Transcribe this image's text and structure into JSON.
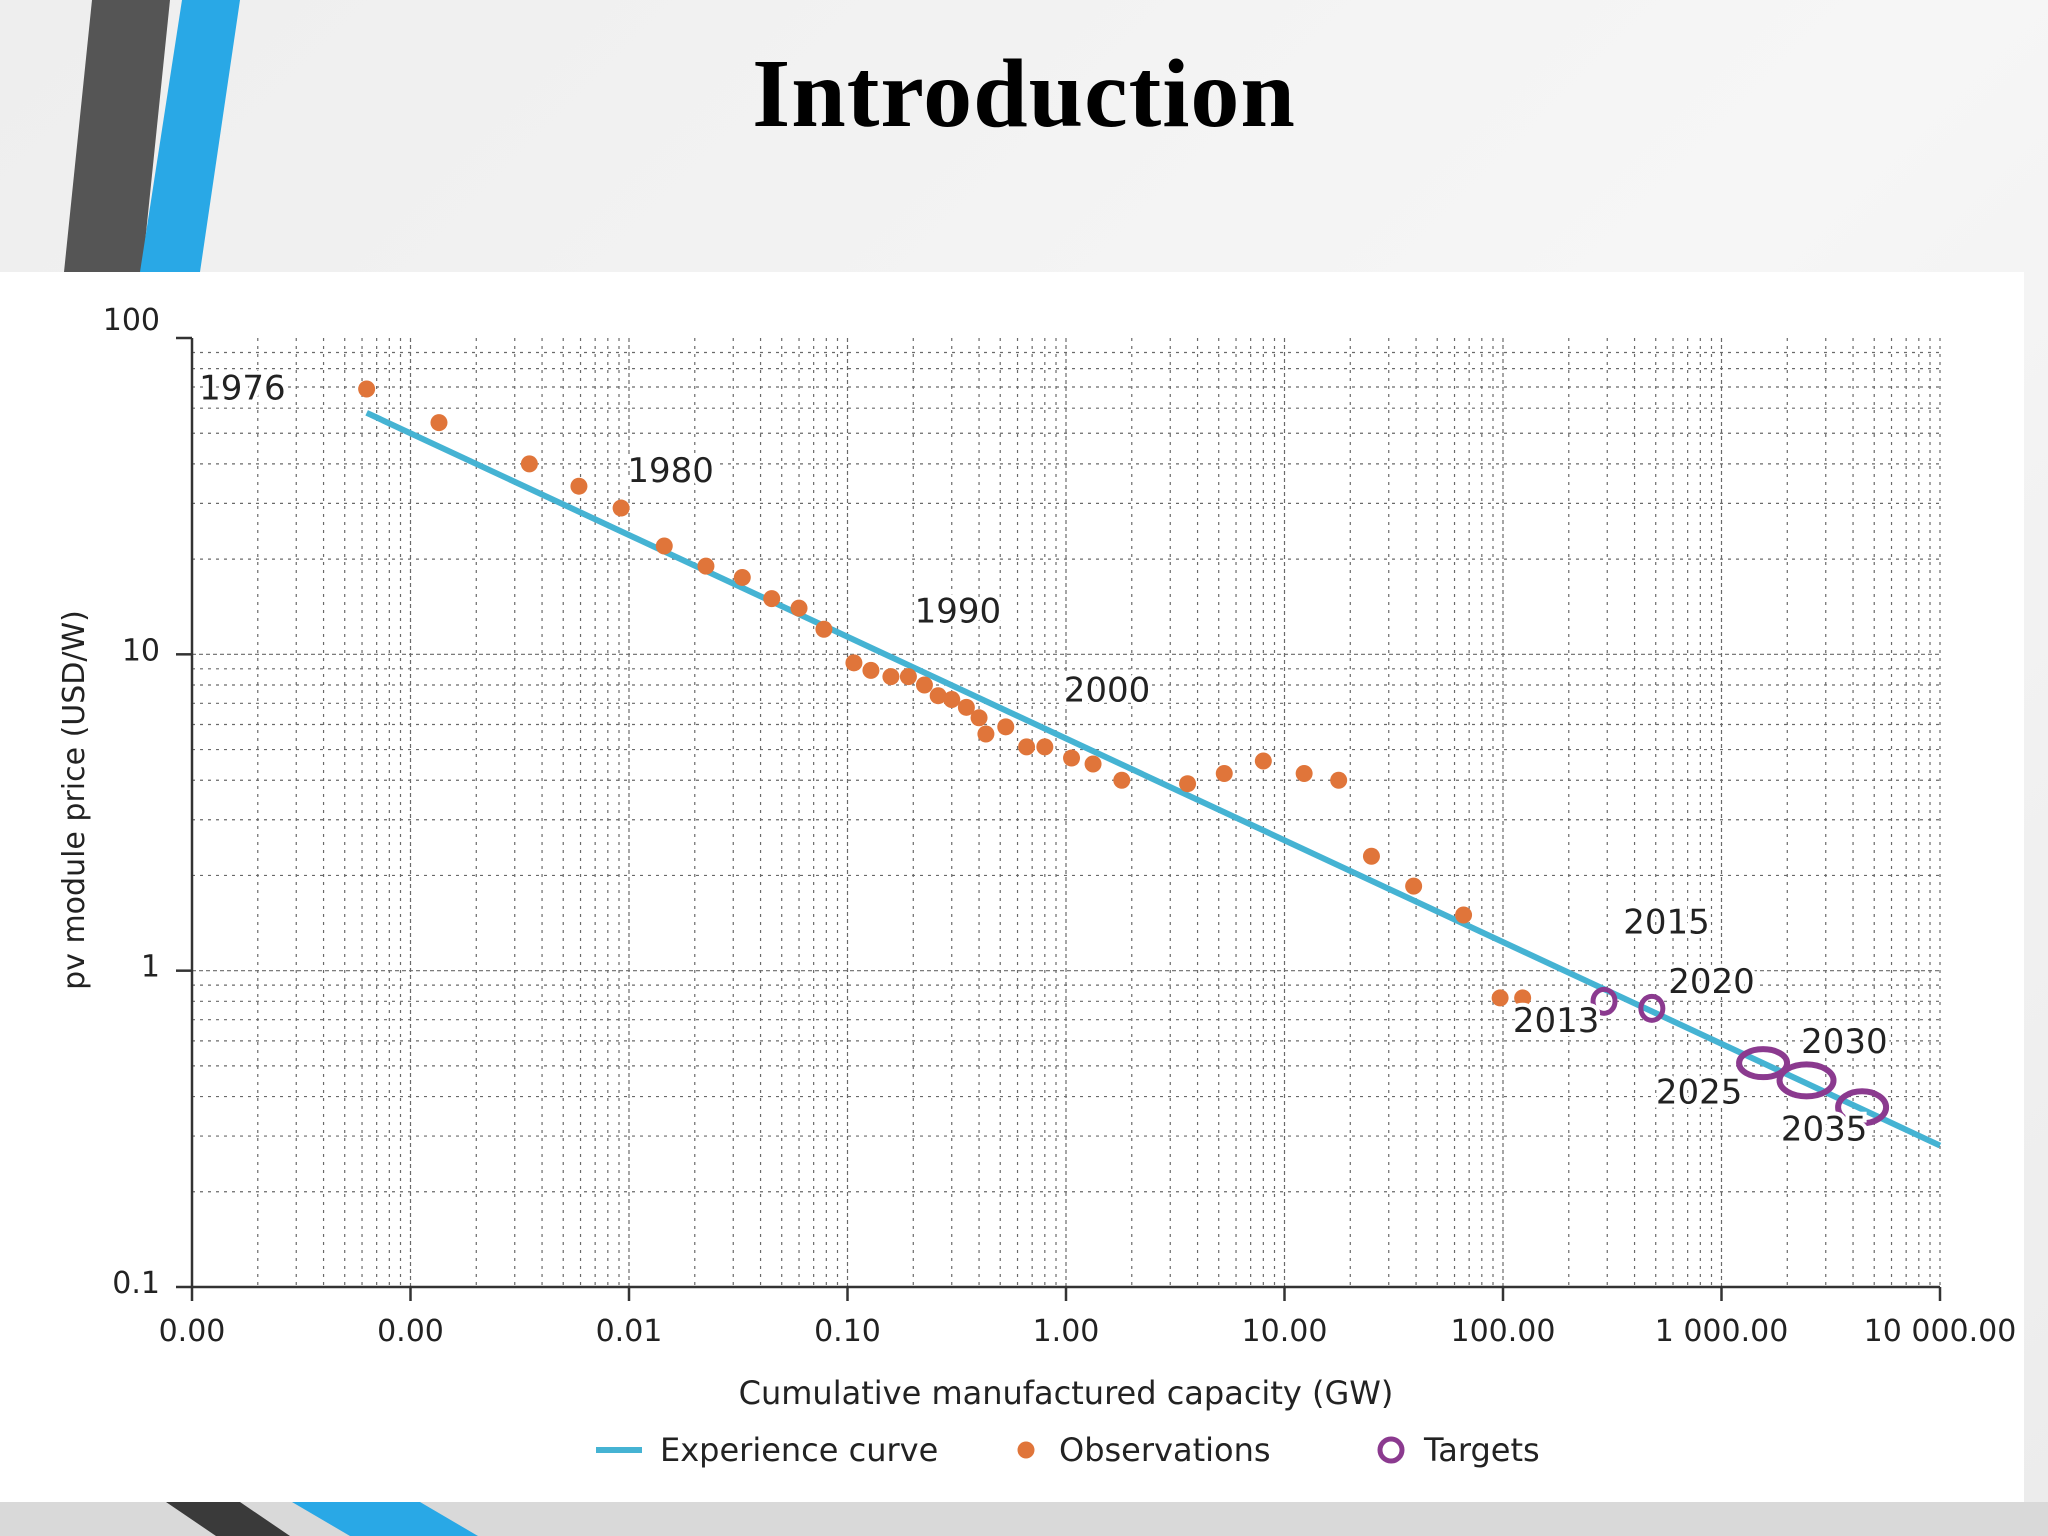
{
  "slide": {
    "title": "Introduction"
  },
  "colors": {
    "accent_dark": "#555555",
    "accent_blue": "#29a8e6",
    "experience_curve": "#45b3d3",
    "observations": "#e0753a",
    "targets": "#8b3a8f"
  },
  "chart_data": {
    "type": "scatter",
    "xlabel": "Cumulative manufactured capacity (GW)",
    "ylabel": "pv module price (USD/W)",
    "x_scale": "log",
    "y_scale": "log",
    "xlim": [
      0.0001,
      10000
    ],
    "ylim": [
      0.1,
      100
    ],
    "grid": true,
    "x_ticks": [
      {
        "value": 0.0001,
        "label": "0.00"
      },
      {
        "value": 0.001,
        "label": "0.00"
      },
      {
        "value": 0.01,
        "label": "0.01"
      },
      {
        "value": 0.1,
        "label": "0.10"
      },
      {
        "value": 1,
        "label": "1.00"
      },
      {
        "value": 10,
        "label": "10.00"
      },
      {
        "value": 100,
        "label": "100.00"
      },
      {
        "value": 1000,
        "label": "1 000.00"
      },
      {
        "value": 10000,
        "label": "10 000.00"
      }
    ],
    "y_ticks": [
      {
        "value": 0.1,
        "label": "0.1"
      },
      {
        "value": 1,
        "label": "1"
      },
      {
        "value": 10,
        "label": "10"
      },
      {
        "value": 100,
        "label": "100"
      }
    ],
    "legend": {
      "position": "bottom",
      "items": [
        {
          "label": "Experience curve",
          "kind": "line"
        },
        {
          "label": "Observations",
          "kind": "dot"
        },
        {
          "label": "Targets",
          "kind": "ring"
        }
      ]
    },
    "series": [
      {
        "name": "Experience curve",
        "kind": "line",
        "points": [
          {
            "x": 0.00063,
            "y": 58
          },
          {
            "x": 10000,
            "y": 0.28
          }
        ]
      },
      {
        "name": "Observations",
        "kind": "scatter",
        "points": [
          {
            "x": 0.00063,
            "y": 69
          },
          {
            "x": 0.00135,
            "y": 54
          },
          {
            "x": 0.0035,
            "y": 40
          },
          {
            "x": 0.0059,
            "y": 34
          },
          {
            "x": 0.0092,
            "y": 29
          },
          {
            "x": 0.0145,
            "y": 22
          },
          {
            "x": 0.0225,
            "y": 19
          },
          {
            "x": 0.033,
            "y": 17.5
          },
          {
            "x": 0.045,
            "y": 15
          },
          {
            "x": 0.06,
            "y": 14
          },
          {
            "x": 0.078,
            "y": 12
          },
          {
            "x": 0.107,
            "y": 9.4
          },
          {
            "x": 0.128,
            "y": 8.9
          },
          {
            "x": 0.158,
            "y": 8.5
          },
          {
            "x": 0.19,
            "y": 8.5
          },
          {
            "x": 0.225,
            "y": 8.0
          },
          {
            "x": 0.26,
            "y": 7.4
          },
          {
            "x": 0.3,
            "y": 7.2
          },
          {
            "x": 0.35,
            "y": 6.8
          },
          {
            "x": 0.4,
            "y": 6.3
          },
          {
            "x": 0.43,
            "y": 5.6
          },
          {
            "x": 0.53,
            "y": 5.9
          },
          {
            "x": 0.66,
            "y": 5.1
          },
          {
            "x": 0.8,
            "y": 5.1
          },
          {
            "x": 1.06,
            "y": 4.7
          },
          {
            "x": 1.33,
            "y": 4.5
          },
          {
            "x": 1.8,
            "y": 4.0
          },
          {
            "x": 3.6,
            "y": 3.9
          },
          {
            "x": 5.3,
            "y": 4.2
          },
          {
            "x": 8.0,
            "y": 4.6
          },
          {
            "x": 12.3,
            "y": 4.2
          },
          {
            "x": 17.7,
            "y": 4.0
          },
          {
            "x": 25,
            "y": 2.3
          },
          {
            "x": 39,
            "y": 1.85
          },
          {
            "x": 66,
            "y": 1.5
          },
          {
            "x": 97,
            "y": 0.82
          },
          {
            "x": 123,
            "y": 0.82
          }
        ]
      },
      {
        "name": "Targets",
        "kind": "ring",
        "points": [
          {
            "x": 290,
            "y": 0.8
          },
          {
            "x": 480,
            "y": 0.76
          },
          {
            "x": 1550,
            "y": 0.51
          },
          {
            "x": 2450,
            "y": 0.45
          },
          {
            "x": 4400,
            "y": 0.37
          }
        ]
      }
    ],
    "annotations": [
      {
        "text": "1976",
        "x": 0.00017,
        "y": 64
      },
      {
        "text": "1980",
        "x": 0.0155,
        "y": 35
      },
      {
        "text": "1990",
        "x": 0.32,
        "y": 12.6
      },
      {
        "text": "2000",
        "x": 1.54,
        "y": 7.1
      },
      {
        "text": "2015",
        "x": 560,
        "y": 1.31
      },
      {
        "text": "2020",
        "x": 900,
        "y": 0.85
      },
      {
        "text": "2013",
        "x": 175,
        "y": 0.64
      },
      {
        "text": "2030",
        "x": 3650,
        "y": 0.55
      },
      {
        "text": "2025",
        "x": 790,
        "y": 0.38
      },
      {
        "text": "2035",
        "x": 2950,
        "y": 0.29
      }
    ]
  }
}
